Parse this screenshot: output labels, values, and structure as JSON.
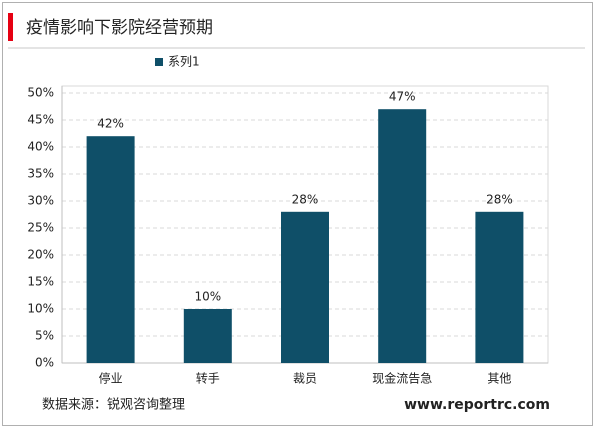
{
  "chart_data": {
    "type": "bar",
    "title": "疫情影响下影院经营预期",
    "categories": [
      "停业",
      "转手",
      "裁员",
      "现金流告急",
      "其他"
    ],
    "series": [
      {
        "name": "系列1",
        "color": "#0f4f68",
        "values": [
          42,
          10,
          28,
          47,
          28
        ],
        "value_labels": [
          "42%",
          "10%",
          "28%",
          "47%",
          "28%"
        ]
      }
    ],
    "ylim": [
      0,
      50
    ],
    "yticks": [
      {
        "value": 0,
        "label": "0%"
      },
      {
        "value": 5,
        "label": "5%"
      },
      {
        "value": 10,
        "label": "10%"
      },
      {
        "value": 15,
        "label": "15%"
      },
      {
        "value": 20,
        "label": "20%"
      },
      {
        "value": 25,
        "label": "25%"
      },
      {
        "value": 30,
        "label": "30%"
      },
      {
        "value": 35,
        "label": "35%"
      },
      {
        "value": 40,
        "label": "40%"
      },
      {
        "value": 45,
        "label": "45%"
      },
      {
        "value": 50,
        "label": "50%"
      }
    ],
    "grid": true,
    "legend": "top",
    "source": "数据来源：锐观咨询整理",
    "website": "www.reportrc.com"
  }
}
